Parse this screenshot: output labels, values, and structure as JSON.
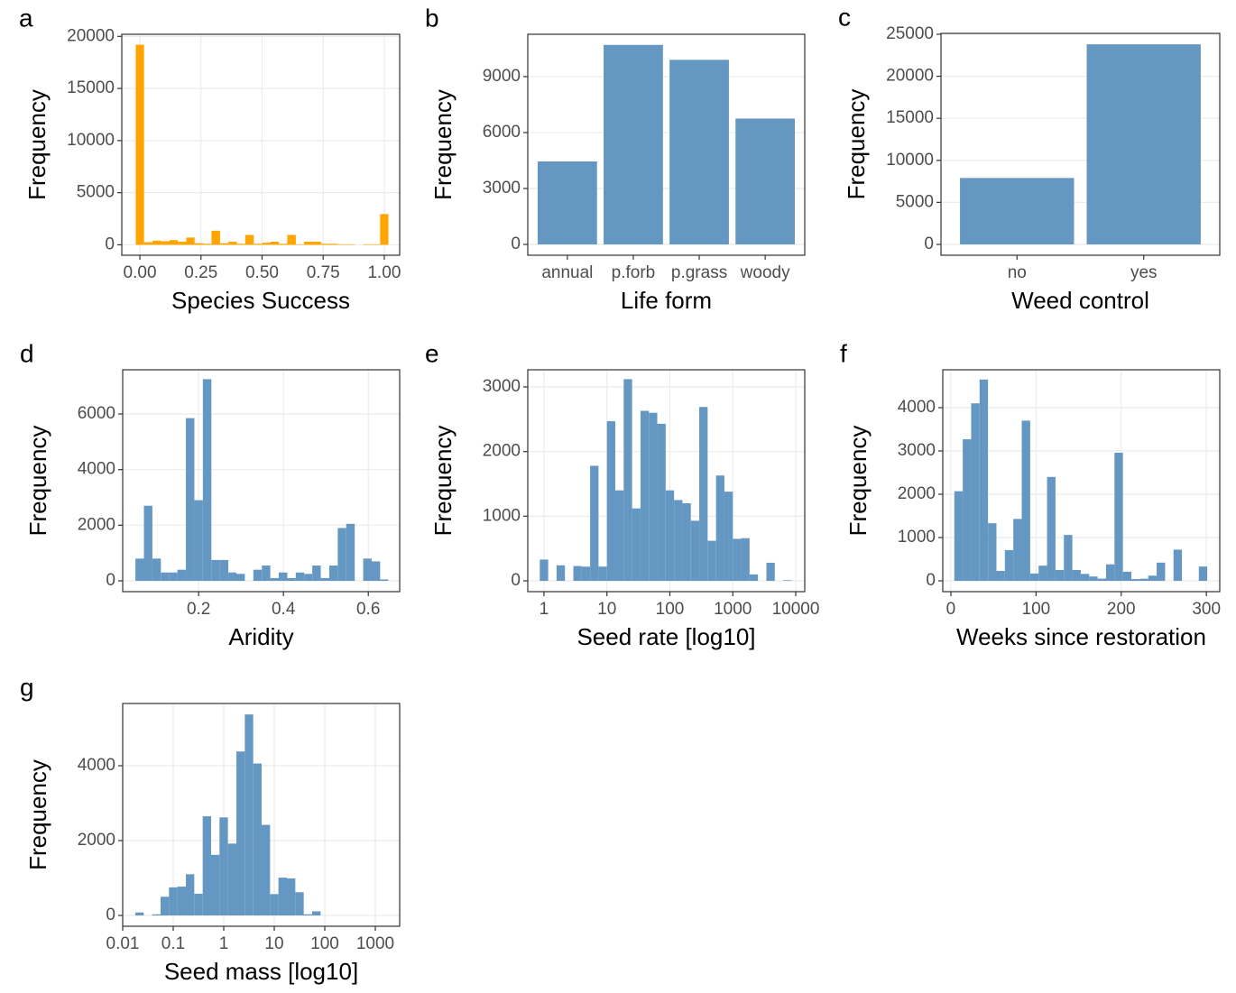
{
  "chart_data": [
    {
      "type": "histogram",
      "panel_label": "a",
      "x_label": "Species Success",
      "y_label": "Frequency",
      "color": "#ffa500",
      "grid": true,
      "bins": [
        -0.017,
        0.017,
        0.052,
        0.086,
        0.121,
        0.155,
        0.19,
        0.224,
        0.259,
        0.293,
        0.328,
        0.362,
        0.397,
        0.431,
        0.466,
        0.5,
        0.534,
        0.569,
        0.603,
        0.638,
        0.672,
        0.707,
        0.741,
        0.776,
        0.81,
        0.845,
        0.879,
        0.914,
        0.948,
        0.983,
        1.017
      ],
      "values": [
        19200,
        250,
        400,
        350,
        450,
        300,
        700,
        150,
        100,
        1350,
        150,
        300,
        100,
        950,
        100,
        200,
        300,
        100,
        950,
        50,
        300,
        300,
        100,
        100,
        50,
        50,
        0,
        50,
        50,
        2950
      ],
      "xlim": [
        -0.074,
        1.063
      ],
      "ylim": [
        -1000,
        20200
      ],
      "xticks": [
        {
          "value": 0,
          "label": "0.00"
        },
        {
          "value": 0.25,
          "label": "0.25"
        },
        {
          "value": 0.5,
          "label": "0.50"
        },
        {
          "value": 0.75,
          "label": "0.75"
        },
        {
          "value": 1,
          "label": "1.00"
        }
      ],
      "yticks": [
        0,
        5000,
        10000,
        15000,
        20000
      ]
    },
    {
      "type": "bar",
      "panel_label": "b",
      "x_label": "Life form",
      "y_label": "Frequency",
      "color": "#6597c3",
      "grid": true,
      "categories": [
        "annual",
        "p.forb",
        "p.grass",
        "woody"
      ],
      "values": [
        4450,
        10700,
        9900,
        6750
      ],
      "ylim": [
        -580,
        11270
      ],
      "yticks": [
        0,
        3000,
        6000,
        9000
      ]
    },
    {
      "type": "bar",
      "panel_label": "c",
      "x_label": "Weed control",
      "y_label": "Frequency",
      "color": "#6597c3",
      "grid": true,
      "categories": [
        "no",
        "yes"
      ],
      "values": [
        7900,
        23800
      ],
      "ylim": [
        -1290,
        25100
      ],
      "yticks": [
        0,
        5000,
        10000,
        15000,
        20000,
        25000
      ]
    },
    {
      "type": "histogram",
      "panel_label": "d",
      "x_label": "Aridity",
      "y_label": "Frequency",
      "color": "#6597c3",
      "grid": true,
      "bins": [
        0.051,
        0.071,
        0.091,
        0.111,
        0.13,
        0.15,
        0.17,
        0.19,
        0.21,
        0.23,
        0.25,
        0.27,
        0.289,
        0.309,
        0.329,
        0.349,
        0.369,
        0.389,
        0.409,
        0.429,
        0.449,
        0.468,
        0.488,
        0.508,
        0.528,
        0.548,
        0.568,
        0.588,
        0.608,
        0.628,
        0.647
      ],
      "values": [
        800,
        2700,
        800,
        300,
        300,
        400,
        5850,
        2900,
        7250,
        750,
        750,
        300,
        250,
        0,
        400,
        550,
        100,
        300,
        100,
        300,
        250,
        550,
        100,
        550,
        1900,
        2050,
        0,
        800,
        700,
        50
      ],
      "xlim": [
        0.021,
        0.674
      ],
      "ylim": [
        -389,
        7589
      ],
      "xticks": [
        0.2,
        0.4,
        0.6
      ],
      "yticks": [
        0,
        2000,
        4000,
        6000
      ]
    },
    {
      "type": "histogram",
      "panel_label": "e",
      "x_label": "Seed rate [log10]",
      "y_label": "Frequency",
      "color": "#6597c3",
      "grid": true,
      "xscale": "log",
      "bins": [
        0.858,
        1.166,
        1.585,
        2.154,
        2.929,
        3.981,
        5.412,
        7.356,
        10,
        13.59,
        18.48,
        25.12,
        34.15,
        46.42,
        63.1,
        85.77,
        116.6,
        158.5,
        215.4,
        292.9,
        398.1,
        541.2,
        735.6,
        1000,
        1359,
        1848,
        2512,
        3415,
        4642,
        6310,
        8577
      ],
      "values": [
        330,
        0,
        240,
        0,
        230,
        220,
        1780,
        220,
        2470,
        1400,
        3120,
        1120,
        2630,
        2600,
        2430,
        1400,
        1250,
        1200,
        930,
        2690,
        620,
        1630,
        1380,
        650,
        660,
        100,
        0,
        280,
        0,
        10
      ],
      "xlim": [
        0.553,
        13900
      ],
      "ylim": [
        -167,
        3265
      ],
      "xticks": [
        1,
        10,
        100,
        1000,
        10000
      ],
      "yticks": [
        0,
        1000,
        2000,
        3000
      ]
    },
    {
      "type": "histogram",
      "panel_label": "f",
      "x_label": "Weeks since restoration",
      "y_label": "Frequency",
      "color": "#6597c3",
      "grid": true,
      "bins": [
        4,
        13.9,
        23.8,
        33.7,
        43.6,
        53.5,
        63.4,
        73.3,
        83.2,
        93.1,
        103,
        112.9,
        122.8,
        132.7,
        142.6,
        152.5,
        162.4,
        172.3,
        182.2,
        192.1,
        202,
        211.9,
        221.8,
        231.7,
        241.6,
        251.5,
        261.4,
        271.3,
        281.2,
        291.1,
        301
      ],
      "values": [
        2070,
        3270,
        4100,
        4650,
        1330,
        230,
        710,
        1430,
        3700,
        170,
        350,
        2400,
        250,
        1060,
        250,
        160,
        100,
        50,
        380,
        2960,
        210,
        40,
        50,
        120,
        420,
        0,
        720,
        0,
        0,
        330
      ],
      "xlim": [
        -9.5,
        315.7
      ],
      "ylim": [
        -250,
        4875
      ],
      "xticks": [
        0,
        100,
        200,
        300
      ],
      "yticks": [
        0,
        1000,
        2000,
        3000,
        4000
      ]
    },
    {
      "type": "histogram",
      "panel_label": "g",
      "x_label": "Seed mass [log10]",
      "y_label": "Frequency",
      "color": "#6597c3",
      "grid": true,
      "xscale": "log",
      "bins": [
        0.0178,
        0.0261,
        0.0383,
        0.0562,
        0.0825,
        0.121,
        0.178,
        0.261,
        0.383,
        0.562,
        0.825,
        1.21,
        1.78,
        2.61,
        3.83,
        5.62,
        8.25,
        12.1,
        17.8,
        26.1,
        38.3,
        56.2,
        82.5,
        121,
        178,
        261,
        383,
        562,
        825,
        1210,
        1778
      ],
      "values": [
        80,
        0,
        30,
        500,
        750,
        770,
        1100,
        580,
        2650,
        1620,
        2620,
        1920,
        4380,
        5370,
        4060,
        2420,
        570,
        1010,
        990,
        620,
        30,
        110,
        0,
        0,
        0,
        0,
        0,
        0,
        0,
        0
      ],
      "xlim": [
        0.01,
        3034
      ],
      "ylim": [
        -289,
        5663
      ],
      "xticks": [
        0.01,
        0.1,
        1,
        10,
        100,
        1000
      ],
      "yticks": [
        0,
        2000,
        4000
      ]
    }
  ]
}
